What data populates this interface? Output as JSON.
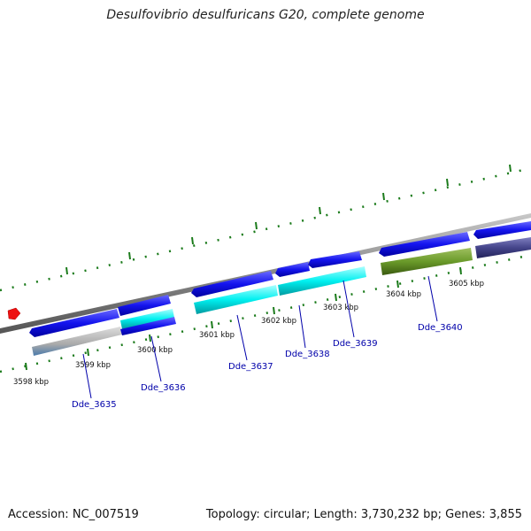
{
  "title": "Desulfovibrio desulfuricans G20, complete genome",
  "footer": {
    "accession": "Accession: NC_007519",
    "summary": "Topology: circular; Length: 3,730,232 bp; Genes: 3,855"
  },
  "colors": {
    "backbone": "#8a8a8a",
    "tick": "#1a7a1a",
    "gene_strand": "#1010e8",
    "marker": "#ee1111",
    "label": "#0000aa"
  },
  "scale_labels": [
    "3598 kbp",
    "3599 kbp",
    "3600 kbp",
    "3601 kbp",
    "3602 kbp",
    "3603 kbp",
    "3604 kbp",
    "3605 kbp"
  ],
  "gene_labels": [
    "Dde_3635",
    "Dde_3636",
    "Dde_3637",
    "Dde_3638",
    "Dde_3639",
    "Dde_3640"
  ]
}
